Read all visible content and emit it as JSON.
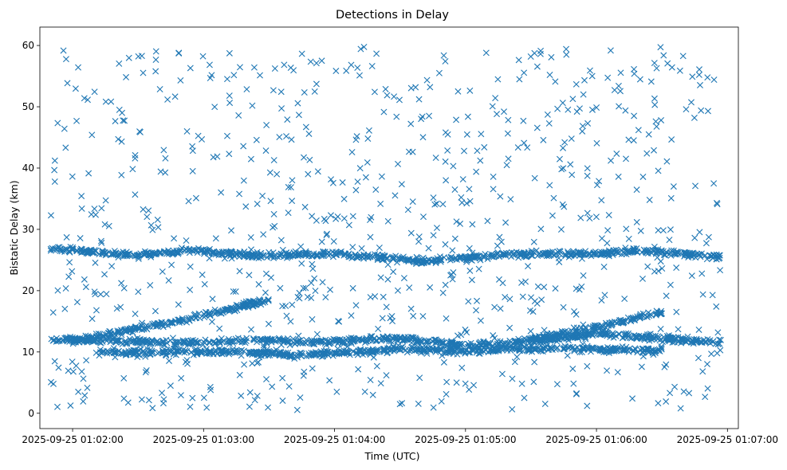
{
  "chart_data": {
    "type": "scatter",
    "title": "Detections in Delay",
    "xlabel": "Time (UTC)",
    "ylabel": "Bistatic Delay (km)",
    "x_tick_labels": [
      "2025-09-25 01:02:00",
      "2025-09-25 01:03:00",
      "2025-09-25 01:04:00",
      "2025-09-25 01:05:00",
      "2025-09-25 01:06:00",
      "2025-09-25 01:07:00"
    ],
    "y_tick_labels": [
      "0",
      "10",
      "20",
      "30",
      "40",
      "50",
      "60"
    ],
    "xlim": [
      "2025-09-25 01:01:45",
      "2025-09-25 01:07:05"
    ],
    "ylim": [
      -2.5,
      63
    ],
    "marker": "x",
    "color": "#1f77b4",
    "grid": false,
    "legend": "none",
    "x_range": [
      "2025-09-25 01:01:50",
      "2025-09-25 01:06:57"
    ],
    "tracks": [
      {
        "description": "upper band",
        "points": [
          {
            "x": "2025-09-25 01:01:50",
            "y": 26.8
          },
          {
            "x": "2025-09-25 01:02:30",
            "y": 25.8
          },
          {
            "x": "2025-09-25 01:02:55",
            "y": 26.6
          },
          {
            "x": "2025-09-25 01:03:20",
            "y": 25.8
          },
          {
            "x": "2025-09-25 01:04:00",
            "y": 26.0
          },
          {
            "x": "2025-09-25 01:04:40",
            "y": 24.8
          },
          {
            "x": "2025-09-25 01:05:20",
            "y": 26.0
          },
          {
            "x": "2025-09-25 01:06:00",
            "y": 26.0
          },
          {
            "x": "2025-09-25 01:06:20",
            "y": 26.5
          },
          {
            "x": "2025-09-25 01:06:57",
            "y": 25.5
          }
        ]
      },
      {
        "description": "lower band",
        "points": [
          {
            "x": "2025-09-25 01:01:50",
            "y": 12.0
          },
          {
            "x": "2025-09-25 01:03:00",
            "y": 11.5
          },
          {
            "x": "2025-09-25 01:03:30",
            "y": 12.0
          },
          {
            "x": "2025-09-25 01:03:40",
            "y": 11.5
          },
          {
            "x": "2025-09-25 01:04:30",
            "y": 12.2
          },
          {
            "x": "2025-09-25 01:05:00",
            "y": 11.0
          },
          {
            "x": "2025-09-25 01:05:40",
            "y": 12.0
          },
          {
            "x": "2025-09-25 01:06:00",
            "y": 13.0
          },
          {
            "x": "2025-09-25 01:06:57",
            "y": 11.5
          }
        ]
      },
      {
        "description": "rising track",
        "points": [
          {
            "x": "2025-09-25 01:02:00",
            "y": 11.8
          },
          {
            "x": "2025-09-25 01:02:40",
            "y": 14.5
          },
          {
            "x": "2025-09-25 01:03:00",
            "y": 16.0
          },
          {
            "x": "2025-09-25 01:03:30",
            "y": 18.5
          }
        ]
      },
      {
        "description": "second rising track",
        "points": [
          {
            "x": "2025-09-25 01:05:30",
            "y": 12.0
          },
          {
            "x": "2025-09-25 01:06:00",
            "y": 14.0
          },
          {
            "x": "2025-09-25 01:06:30",
            "y": 16.5
          }
        ]
      },
      {
        "description": "low band",
        "points": [
          {
            "x": "2025-09-25 01:02:10",
            "y": 10.0
          },
          {
            "x": "2025-09-25 01:03:20",
            "y": 10.0
          },
          {
            "x": "2025-09-25 01:03:40",
            "y": 9.5
          },
          {
            "x": "2025-09-25 01:04:10",
            "y": 10.0
          },
          {
            "x": "2025-09-25 01:04:30",
            "y": 10.5
          },
          {
            "x": "2025-09-25 01:05:00",
            "y": 10.0
          },
          {
            "x": "2025-09-25 01:05:20",
            "y": 10.5
          },
          {
            "x": "2025-09-25 01:05:50",
            "y": 10.5
          },
          {
            "x": "2025-09-25 01:06:30",
            "y": 10.2
          }
        ]
      }
    ]
  }
}
